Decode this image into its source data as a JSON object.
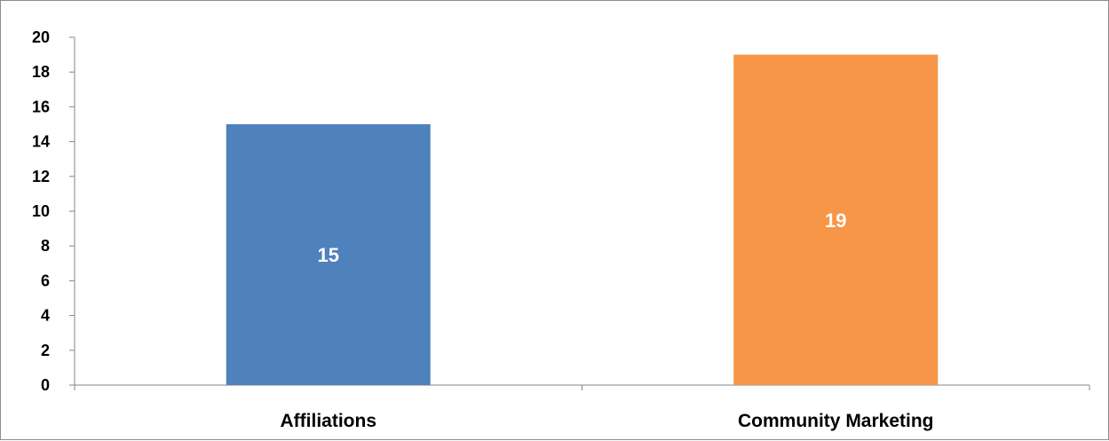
{
  "chart_data": {
    "type": "bar",
    "title": "",
    "xlabel": "",
    "ylabel": "",
    "categories": [
      "Affiliations",
      "Community Marketing"
    ],
    "values": [
      15,
      19
    ],
    "data_labels": [
      "15",
      "19"
    ],
    "colors": [
      "#4f81bd",
      "#f79646"
    ],
    "ylim": [
      0,
      20
    ],
    "yticks": [
      0,
      2,
      4,
      6,
      8,
      10,
      12,
      14,
      16,
      18,
      20
    ],
    "ytick_labels": [
      "0",
      "2",
      "4",
      "6",
      "8",
      "10",
      "12",
      "14",
      "16",
      "18",
      "20"
    ],
    "grid": false,
    "legend": "none",
    "data_label_color": "#ffffff"
  }
}
